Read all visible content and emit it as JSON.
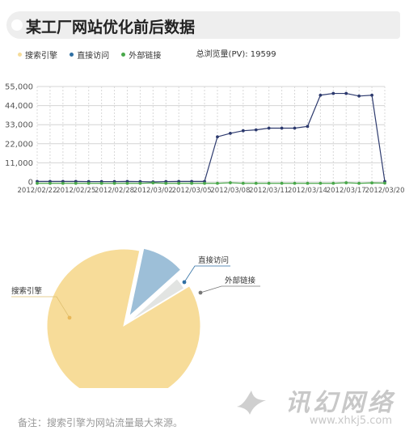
{
  "header": {
    "title": "某工厂网站优化前后数据"
  },
  "legend": {
    "items": [
      {
        "label": "搜索引擎",
        "color": "#f5dc9a"
      },
      {
        "label": "直接访问",
        "color": "#2f6fa3"
      },
      {
        "label": "外部链接",
        "color": "#49a84a"
      }
    ],
    "total_label": "总浏览量(PV): 19599"
  },
  "chart_data": [
    {
      "type": "line",
      "x_tick_labels": [
        "2012/02/22",
        "2012/02/25",
        "2012/02/28",
        "2012/03/02",
        "2012/03/05",
        "2012/03/08",
        "2012/03/11",
        "2012/03/14",
        "2012/03/17",
        "2012/03/20"
      ],
      "y_tick_labels": [
        "0",
        "11,000",
        "22,000",
        "33,000",
        "44,000",
        "55,000"
      ],
      "ylim": [
        0,
        55000
      ],
      "grid": true,
      "x": [
        "2012/02/22",
        "2012/02/23",
        "2012/02/24",
        "2012/02/25",
        "2012/02/26",
        "2012/02/27",
        "2012/02/28",
        "2012/02/29",
        "2012/03/01",
        "2012/03/02",
        "2012/03/03",
        "2012/03/04",
        "2012/03/05",
        "2012/03/06",
        "2012/03/07",
        "2012/03/08",
        "2012/03/09",
        "2012/03/10",
        "2012/03/11",
        "2012/03/12",
        "2012/03/13",
        "2012/03/14",
        "2012/03/15",
        "2012/03/16",
        "2012/03/17",
        "2012/03/18",
        "2012/03/19",
        "2012/03/20"
      ],
      "series": [
        {
          "color": "#2d3a6e",
          "values": [
            300,
            300,
            300,
            300,
            200,
            200,
            200,
            300,
            200,
            0,
            200,
            300,
            300,
            300,
            26000,
            28000,
            29500,
            30000,
            31000,
            31000,
            31000,
            32000,
            50000,
            51000,
            51000,
            49500,
            50000,
            200
          ]
        },
        {
          "color": "#49a84a",
          "values": [
            -800,
            -800,
            -800,
            -800,
            -800,
            -800,
            -800,
            -800,
            -800,
            -600,
            -800,
            -800,
            -800,
            -800,
            -800,
            -500,
            -800,
            -800,
            -800,
            -800,
            -800,
            -800,
            -800,
            -800,
            -500,
            -800,
            -600,
            -700
          ]
        }
      ]
    },
    {
      "type": "pie",
      "labels": [
        "搜索引擎",
        "直接访问",
        "外部链接"
      ],
      "values": [
        87,
        10,
        3
      ],
      "colors": [
        "#f7dc99",
        "#9dbfd8",
        "#e2e4e2"
      ]
    }
  ],
  "footer": {
    "note": "备注：搜索引擎为网站流量最大来源。",
    "watermark_brand": "讯幻网络",
    "watermark_url": "www.xhkj5.com"
  }
}
